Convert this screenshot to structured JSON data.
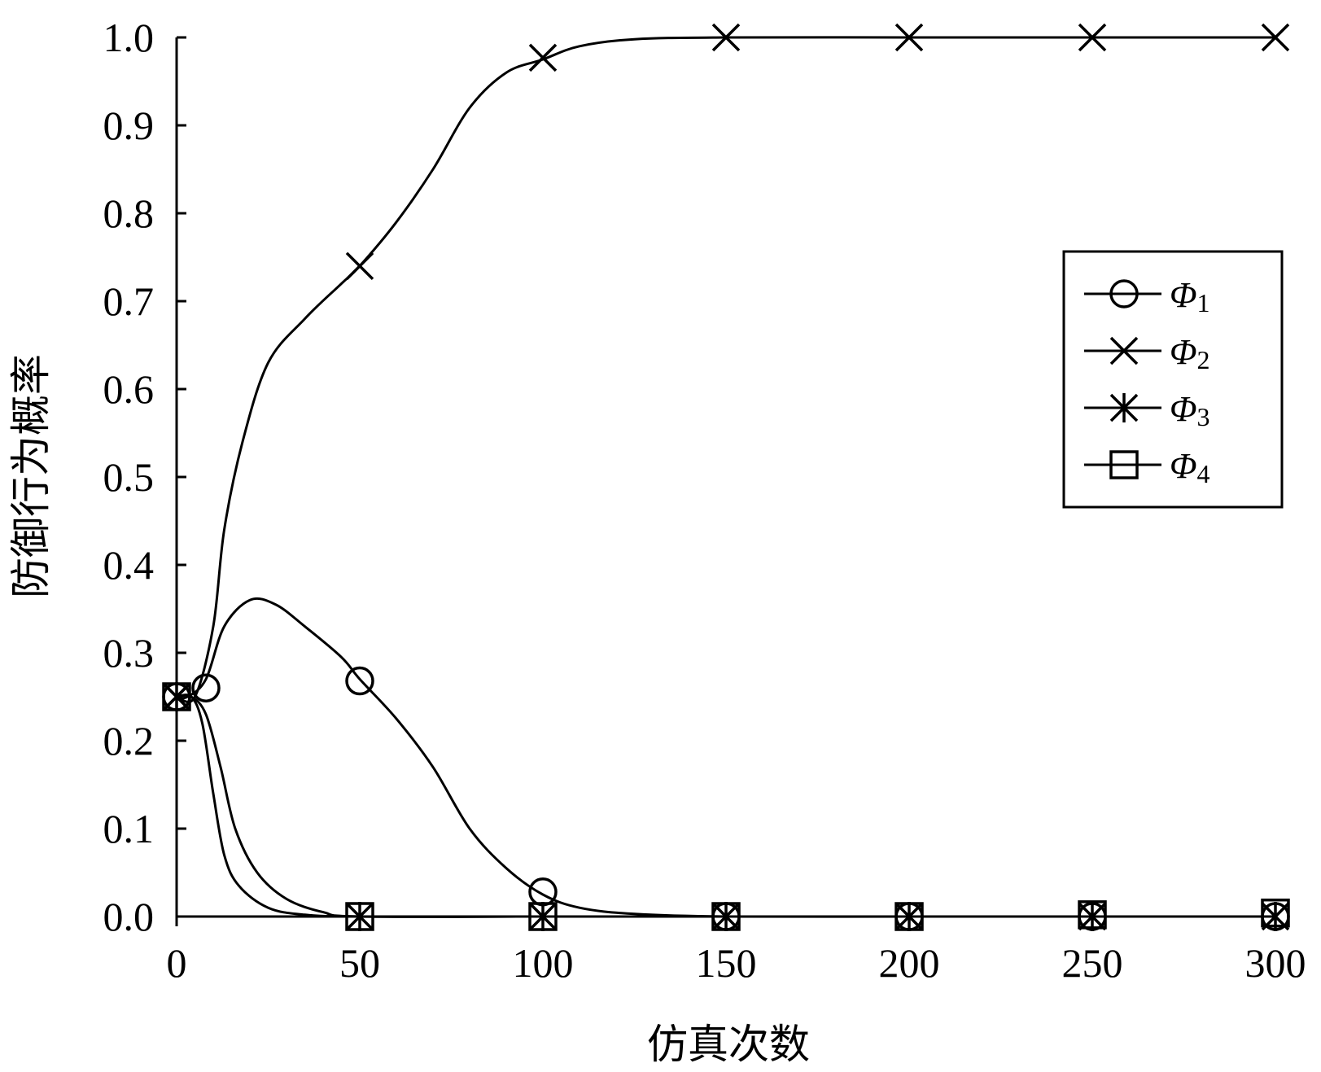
{
  "chart_data": {
    "type": "line",
    "title": "",
    "xlabel": "仿真次数",
    "ylabel": "防御行为概率",
    "xlim": [
      0,
      300
    ],
    "ylim": [
      0,
      1.0
    ],
    "x_ticks": [
      "0",
      "50",
      "100",
      "150",
      "200",
      "250",
      "300"
    ],
    "y_ticks": [
      "0.0",
      "0.1",
      "0.2",
      "0.3",
      "0.4",
      "0.5",
      "0.6",
      "0.7",
      "0.8",
      "0.9",
      "1.0"
    ],
    "grid": false,
    "legend_position": "right",
    "series": [
      {
        "name": "Φ1",
        "name_main": "Φ",
        "name_sub": "1",
        "marker": "circle",
        "points": [
          [
            0,
            0.25
          ],
          [
            3,
            0.25
          ],
          [
            8,
            0.27
          ],
          [
            13,
            0.33
          ],
          [
            20,
            0.36
          ],
          [
            27,
            0.355
          ],
          [
            35,
            0.33
          ],
          [
            45,
            0.295
          ],
          [
            50,
            0.27
          ],
          [
            60,
            0.225
          ],
          [
            70,
            0.17
          ],
          [
            80,
            0.1
          ],
          [
            90,
            0.055
          ],
          [
            100,
            0.025
          ],
          [
            110,
            0.01
          ],
          [
            125,
            0.003
          ],
          [
            150,
            0.0
          ],
          [
            200,
            0.0
          ],
          [
            250,
            0.0
          ],
          [
            300,
            0.0
          ]
        ],
        "marker_points": [
          [
            0,
            0.25
          ],
          [
            8,
            0.26
          ],
          [
            50,
            0.268
          ],
          [
            100,
            0.028
          ],
          [
            150,
            0.0
          ],
          [
            200,
            0.0
          ],
          [
            250,
            0.0
          ],
          [
            300,
            0.0
          ]
        ]
      },
      {
        "name": "Φ2",
        "name_main": "Φ",
        "name_sub": "2",
        "marker": "x",
        "points": [
          [
            0,
            0.25
          ],
          [
            5,
            0.25
          ],
          [
            10,
            0.33
          ],
          [
            13,
            0.44
          ],
          [
            18,
            0.54
          ],
          [
            25,
            0.63
          ],
          [
            35,
            0.68
          ],
          [
            45,
            0.72
          ],
          [
            50,
            0.74
          ],
          [
            60,
            0.79
          ],
          [
            70,
            0.85
          ],
          [
            80,
            0.92
          ],
          [
            90,
            0.96
          ],
          [
            100,
            0.975
          ],
          [
            110,
            0.99
          ],
          [
            125,
            0.998
          ],
          [
            150,
            1.0
          ],
          [
            200,
            1.0
          ],
          [
            250,
            1.0
          ],
          [
            300,
            1.0
          ]
        ],
        "marker_points": [
          [
            0,
            0.25
          ],
          [
            50,
            0.74
          ],
          [
            100,
            0.977
          ],
          [
            150,
            1.0
          ],
          [
            200,
            1.0
          ],
          [
            250,
            1.0
          ],
          [
            300,
            1.0
          ]
        ]
      },
      {
        "name": "Φ3",
        "name_main": "Φ",
        "name_sub": "3",
        "marker": "asterisk",
        "points": [
          [
            0,
            0.25
          ],
          [
            4,
            0.25
          ],
          [
            7,
            0.22
          ],
          [
            10,
            0.14
          ],
          [
            13,
            0.07
          ],
          [
            17,
            0.035
          ],
          [
            25,
            0.01
          ],
          [
            35,
            0.002
          ],
          [
            50,
            0.0
          ],
          [
            100,
            0.0
          ],
          [
            150,
            0.0
          ],
          [
            200,
            0.0
          ],
          [
            250,
            0.0
          ],
          [
            300,
            0.0
          ]
        ],
        "marker_points": [
          [
            0,
            0.25
          ],
          [
            50,
            0.0
          ],
          [
            100,
            0.0
          ],
          [
            150,
            0.0
          ],
          [
            200,
            0.0
          ],
          [
            250,
            0.0
          ],
          [
            300,
            0.0
          ]
        ]
      },
      {
        "name": "Φ4",
        "name_main": "Φ",
        "name_sub": "4",
        "marker": "square",
        "points": [
          [
            0,
            0.25
          ],
          [
            4,
            0.25
          ],
          [
            8,
            0.23
          ],
          [
            12,
            0.17
          ],
          [
            16,
            0.1
          ],
          [
            22,
            0.05
          ],
          [
            30,
            0.02
          ],
          [
            40,
            0.005
          ],
          [
            50,
            0.0
          ],
          [
            100,
            0.0
          ],
          [
            150,
            0.0
          ],
          [
            200,
            0.0
          ],
          [
            250,
            0.0
          ],
          [
            300,
            0.0
          ]
        ],
        "marker_points": [
          [
            0,
            0.25
          ],
          [
            50,
            0.0
          ],
          [
            100,
            0.0
          ],
          [
            150,
            0.0
          ],
          [
            200,
            0.0
          ],
          [
            250,
            0.002
          ],
          [
            300,
            0.004
          ]
        ]
      }
    ]
  }
}
